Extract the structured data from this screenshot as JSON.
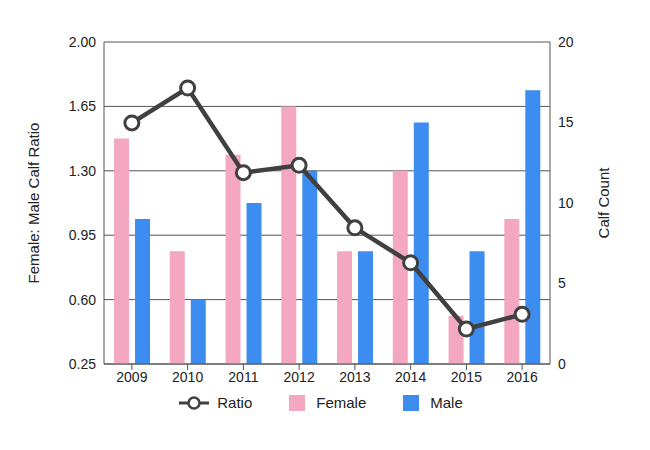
{
  "chart_data": {
    "type": "bar",
    "categories": [
      "2009",
      "2010",
      "2011",
      "2012",
      "2013",
      "2014",
      "2015",
      "2016"
    ],
    "ylabel": "Female: Male Calf Ratio",
    "y2label": "Calf Count",
    "ylim": [
      0.25,
      2.0
    ],
    "yticks": [
      0.25,
      {
        "value": 0.6,
        "label": "0.60"
      },
      0.95,
      {
        "value": 1.3,
        "label": "1.30"
      },
      1.65,
      {
        "value": 2,
        "label": "2.00"
      }
    ],
    "y2lim": [
      0,
      20
    ],
    "y2ticks": [
      0,
      5,
      10,
      15,
      20
    ],
    "grid": true,
    "legend": "bottom",
    "series": [
      {
        "name": "Ratio",
        "type": "line",
        "color": "#404040",
        "marker": "circle",
        "axis": "y",
        "values": [
          1.56,
          1.75,
          1.29,
          1.33,
          0.99,
          0.8,
          0.44,
          0.52
        ]
      },
      {
        "name": "Female",
        "type": "bar",
        "color": "#f4a7c0",
        "axis": "y2",
        "values": [
          14,
          7,
          13,
          16,
          7,
          12,
          3,
          9
        ]
      },
      {
        "name": "Male",
        "type": "bar",
        "color": "#3d8df0",
        "axis": "y2",
        "values": [
          9,
          4,
          10,
          12,
          7,
          15,
          7,
          17
        ]
      }
    ]
  }
}
